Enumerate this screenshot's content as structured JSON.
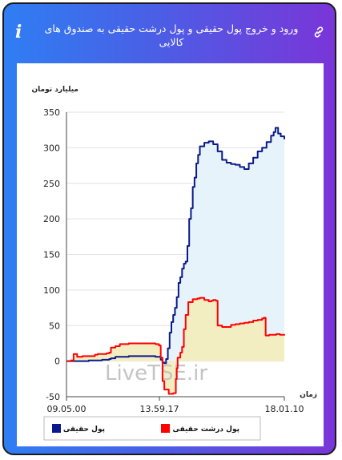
{
  "header": {
    "title": "ورود و خروج پول حقیقی و پول درشت حقیقی به صندوق های کالایی"
  },
  "chart_data": {
    "type": "line",
    "ylabel": "میلیارد تومان",
    "xlabel": "زمان",
    "ylim": [
      -50,
      350
    ],
    "yticks": [
      -50,
      0,
      50,
      100,
      150,
      200,
      250,
      300,
      350
    ],
    "xtick_labels": [
      "09.05.00",
      "13.59.17",
      "18.01.10"
    ],
    "watermark": "LiveTSE.ir",
    "series": [
      {
        "name": "پول حقیقی",
        "color": "#0a1a8a",
        "fill": "#e6f3fa",
        "points": [
          [
            0,
            0
          ],
          [
            10,
            0
          ],
          [
            25,
            1
          ],
          [
            40,
            2
          ],
          [
            48,
            3
          ],
          [
            50,
            4
          ],
          [
            55,
            6
          ],
          [
            60,
            6
          ],
          [
            70,
            7
          ],
          [
            90,
            7
          ],
          [
            100,
            6
          ],
          [
            104,
            6
          ],
          [
            106,
            2
          ],
          [
            108,
            -2
          ],
          [
            110,
            -3
          ],
          [
            112,
            3
          ],
          [
            114,
            18
          ],
          [
            116,
            40
          ],
          [
            118,
            55
          ],
          [
            120,
            65
          ],
          [
            122,
            75
          ],
          [
            124,
            90
          ],
          [
            126,
            110
          ],
          [
            128,
            118
          ],
          [
            130,
            130
          ],
          [
            132,
            137
          ],
          [
            134,
            140
          ],
          [
            136,
            162
          ],
          [
            138,
            200
          ],
          [
            140,
            215
          ],
          [
            142,
            245
          ],
          [
            144,
            258
          ],
          [
            146,
            278
          ],
          [
            148,
            290
          ],
          [
            150,
            302
          ],
          [
            155,
            307
          ],
          [
            160,
            309
          ],
          [
            165,
            305
          ],
          [
            170,
            295
          ],
          [
            175,
            283
          ],
          [
            180,
            279
          ],
          [
            185,
            277
          ],
          [
            190,
            276
          ],
          [
            195,
            273
          ],
          [
            200,
            270
          ],
          [
            205,
            278
          ],
          [
            210,
            286
          ],
          [
            215,
            295
          ],
          [
            220,
            300
          ],
          [
            225,
            308
          ],
          [
            230,
            317
          ],
          [
            233,
            322
          ],
          [
            235,
            328
          ],
          [
            238,
            320
          ],
          [
            241,
            316
          ],
          [
            245,
            312
          ]
        ]
      },
      {
        "name": "پول درشت حقیقی",
        "color": "#ff0000",
        "fill": "#f3eec2",
        "points": [
          [
            0,
            0
          ],
          [
            5,
            1
          ],
          [
            8,
            10
          ],
          [
            12,
            6
          ],
          [
            18,
            7
          ],
          [
            25,
            7
          ],
          [
            32,
            9
          ],
          [
            35,
            10
          ],
          [
            40,
            10
          ],
          [
            45,
            11
          ],
          [
            48,
            12
          ],
          [
            50,
            19
          ],
          [
            55,
            21
          ],
          [
            60,
            24
          ],
          [
            70,
            25
          ],
          [
            85,
            25
          ],
          [
            90,
            25
          ],
          [
            100,
            24
          ],
          [
            104,
            22
          ],
          [
            106,
            5
          ],
          [
            108,
            -28
          ],
          [
            110,
            -40
          ],
          [
            115,
            -46
          ],
          [
            120,
            -45
          ],
          [
            123,
            -25
          ],
          [
            124,
            -10
          ],
          [
            125,
            5
          ],
          [
            128,
            12
          ],
          [
            130,
            20
          ],
          [
            132,
            45
          ],
          [
            134,
            65
          ],
          [
            137,
            83
          ],
          [
            142,
            87
          ],
          [
            147,
            88
          ],
          [
            150,
            89
          ],
          [
            155,
            86
          ],
          [
            160,
            84
          ],
          [
            163,
            85
          ],
          [
            165,
            86
          ],
          [
            168,
            85
          ],
          [
            170,
            50
          ],
          [
            175,
            48
          ],
          [
            180,
            48
          ],
          [
            185,
            51
          ],
          [
            190,
            52
          ],
          [
            195,
            53
          ],
          [
            200,
            54
          ],
          [
            205,
            55
          ],
          [
            210,
            57
          ],
          [
            215,
            58
          ],
          [
            220,
            60
          ],
          [
            222,
            61
          ],
          [
            224,
            36
          ],
          [
            228,
            37
          ],
          [
            236,
            38
          ],
          [
            240,
            37
          ],
          [
            245,
            36
          ]
        ]
      }
    ]
  }
}
